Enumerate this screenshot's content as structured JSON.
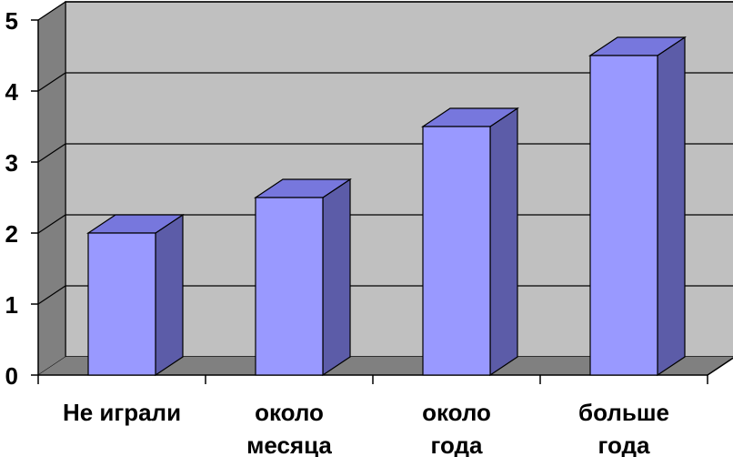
{
  "chart_data": {
    "type": "bar",
    "style": "3d-column",
    "categories": [
      [
        "Не играли"
      ],
      [
        "около",
        "месяца"
      ],
      [
        "около",
        "года"
      ],
      [
        "больше",
        "года"
      ]
    ],
    "values": [
      2,
      2.5,
      3.5,
      4.5
    ],
    "ylim": [
      0,
      5
    ],
    "yticks": [
      "0",
      "1",
      "2",
      "3",
      "4",
      "5"
    ],
    "grid": true,
    "title": "",
    "xlabel": "",
    "ylabel": ""
  },
  "colors": {
    "wall": "#c0c0c0",
    "floor": "#808080",
    "side_wall": "#808080",
    "bar_front": "#9999ff",
    "bar_side": "#5c5ca8",
    "bar_top": "#7777dd",
    "gridline": "#000000"
  }
}
